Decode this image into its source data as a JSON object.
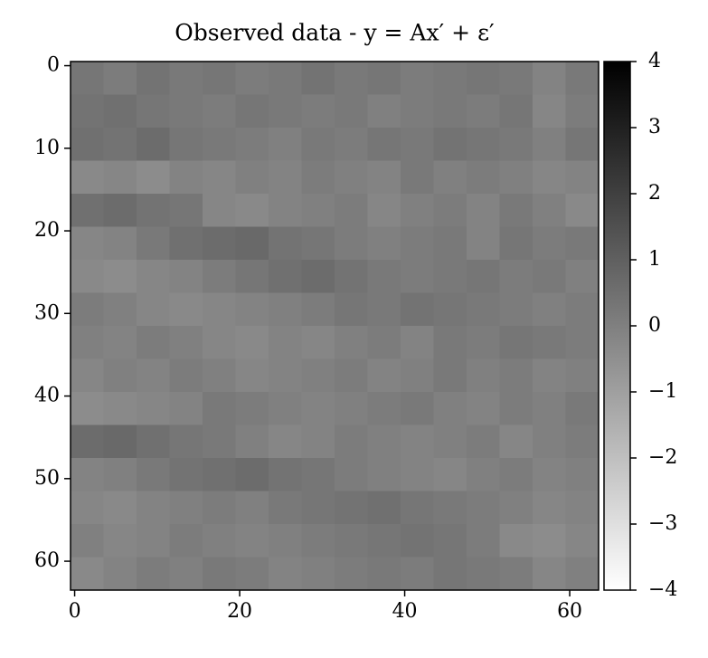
{
  "chart_data": {
    "type": "heatmap",
    "title": "Observed data - y = Ax′ + ε′",
    "colormap": "gray_r",
    "x": [
      1.5,
      5.5,
      9.5,
      13.5,
      17.5,
      21.5,
      25.5,
      29.5,
      33.5,
      37.5,
      41.5,
      45.5,
      49.5,
      53.5,
      57.5,
      61.5
    ],
    "y": [
      1.5,
      5.5,
      9.5,
      13.5,
      17.5,
      21.5,
      25.5,
      29.5,
      33.5,
      37.5,
      41.5,
      45.5,
      49.5,
      53.5,
      57.5,
      61.5
    ],
    "z": [
      [
        0.3,
        0.1,
        0.4,
        0.2,
        0.3,
        0.1,
        0.2,
        0.4,
        0.2,
        0.3,
        0.1,
        0.2,
        0.3,
        0.2,
        -0.1,
        0.2
      ],
      [
        0.4,
        0.5,
        0.3,
        0.2,
        0.1,
        0.3,
        0.2,
        0.1,
        0.2,
        0.0,
        0.1,
        0.2,
        0.1,
        0.3,
        -0.2,
        0.1
      ],
      [
        0.5,
        0.4,
        0.6,
        0.3,
        0.2,
        0.1,
        0.0,
        0.2,
        0.1,
        0.3,
        0.2,
        0.4,
        0.3,
        0.2,
        0.0,
        0.3
      ],
      [
        -0.3,
        -0.2,
        -0.4,
        -0.1,
        -0.2,
        0.0,
        -0.1,
        0.1,
        0.0,
        -0.1,
        0.2,
        0.0,
        0.1,
        0.0,
        -0.2,
        -0.1
      ],
      [
        0.5,
        0.6,
        0.4,
        0.3,
        -0.2,
        -0.3,
        -0.1,
        0.0,
        0.1,
        -0.2,
        0.0,
        0.1,
        -0.1,
        0.2,
        0.0,
        -0.3
      ],
      [
        -0.2,
        -0.1,
        0.2,
        0.5,
        0.6,
        0.7,
        0.4,
        0.3,
        0.1,
        0.0,
        0.1,
        0.2,
        -0.1,
        0.3,
        0.1,
        0.2
      ],
      [
        -0.3,
        -0.4,
        -0.2,
        -0.1,
        0.1,
        0.3,
        0.5,
        0.6,
        0.4,
        0.2,
        0.1,
        0.2,
        0.3,
        0.1,
        0.2,
        0.0
      ],
      [
        0.1,
        0.0,
        -0.2,
        -0.3,
        -0.2,
        -0.1,
        0.0,
        0.1,
        0.3,
        0.2,
        0.4,
        0.3,
        0.2,
        0.1,
        0.0,
        0.1
      ],
      [
        0.0,
        -0.1,
        0.1,
        0.0,
        -0.2,
        -0.3,
        -0.1,
        -0.2,
        0.0,
        0.1,
        -0.1,
        0.2,
        0.1,
        0.3,
        0.2,
        0.1
      ],
      [
        -0.2,
        0.0,
        -0.1,
        0.1,
        0.0,
        -0.2,
        -0.1,
        0.0,
        0.1,
        -0.1,
        0.0,
        0.2,
        0.0,
        0.1,
        -0.1,
        0.0
      ],
      [
        -0.4,
        -0.3,
        -0.2,
        -0.1,
        0.2,
        0.1,
        0.0,
        -0.1,
        0.0,
        0.1,
        0.2,
        0.0,
        -0.1,
        0.1,
        0.0,
        0.2
      ],
      [
        0.6,
        0.7,
        0.5,
        0.3,
        0.2,
        0.0,
        -0.2,
        -0.1,
        0.1,
        0.0,
        -0.1,
        0.0,
        0.1,
        -0.2,
        0.0,
        0.1
      ],
      [
        -0.1,
        0.0,
        0.2,
        0.4,
        0.5,
        0.6,
        0.4,
        0.3,
        0.1,
        0.0,
        -0.1,
        -0.2,
        0.0,
        0.1,
        -0.1,
        0.0
      ],
      [
        -0.2,
        -0.3,
        -0.1,
        0.0,
        0.1,
        0.0,
        0.2,
        0.3,
        0.4,
        0.5,
        0.3,
        0.2,
        0.1,
        0.0,
        -0.2,
        -0.1
      ],
      [
        0.0,
        -0.2,
        -0.1,
        0.1,
        0.0,
        -0.1,
        0.0,
        0.1,
        0.2,
        0.3,
        0.4,
        0.3,
        0.1,
        -0.3,
        -0.4,
        -0.2
      ],
      [
        -0.3,
        -0.1,
        0.1,
        0.0,
        0.2,
        0.1,
        -0.1,
        0.0,
        0.1,
        0.2,
        0.1,
        0.3,
        0.2,
        0.1,
        -0.2,
        0.0
      ]
    ],
    "xlim": [
      -0.5,
      63.5
    ],
    "xticks": [
      0,
      20,
      40,
      60
    ],
    "ylim": [
      63.5,
      -0.5
    ],
    "yticks": [
      0,
      10,
      20,
      30,
      40,
      50,
      60
    ],
    "clim": [
      -4,
      4
    ],
    "cticks": [
      {
        "value": -4,
        "label": "−4"
      },
      {
        "value": -3,
        "label": "−3"
      },
      {
        "value": -2,
        "label": "−2"
      },
      {
        "value": -1,
        "label": "−1"
      },
      0,
      1,
      2,
      3,
      4
    ]
  }
}
